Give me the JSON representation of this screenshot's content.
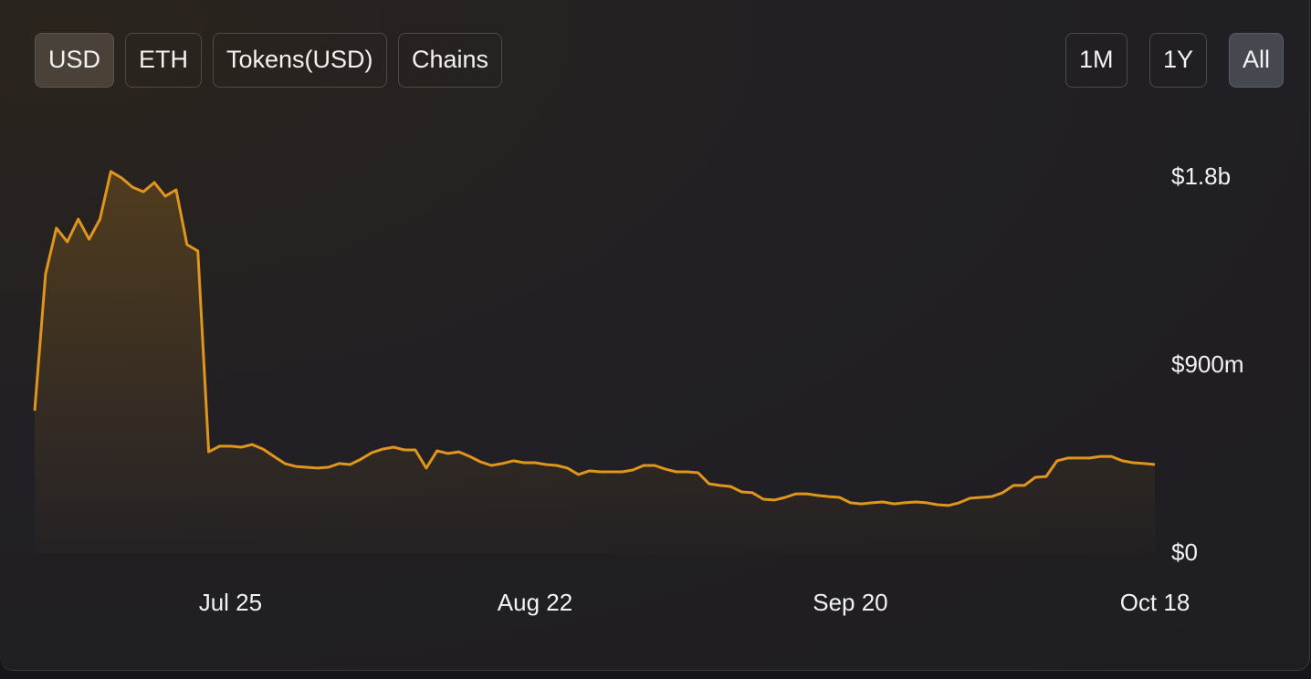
{
  "controls": {
    "denominations": [
      {
        "label": "USD",
        "active": true
      },
      {
        "label": "ETH",
        "active": false
      },
      {
        "label": "Tokens(USD)",
        "active": false
      },
      {
        "label": "Chains",
        "active": false
      }
    ],
    "ranges": [
      {
        "label": "1M",
        "active": false
      },
      {
        "label": "1Y",
        "active": false
      },
      {
        "label": "All",
        "active": true
      }
    ]
  },
  "chart_data": {
    "type": "area",
    "color": "#e0961c",
    "categories": [
      null,
      null,
      null,
      null,
      null,
      null,
      null,
      null,
      null,
      null,
      null,
      null,
      null,
      null,
      null,
      null,
      null,
      null,
      "Jul 25",
      null,
      null,
      null,
      null,
      null,
      null,
      null,
      null,
      null,
      null,
      null,
      null,
      null,
      null,
      null,
      null,
      null,
      null,
      null,
      null,
      null,
      null,
      null,
      null,
      null,
      null,
      null,
      "Aug 22",
      null,
      null,
      null,
      null,
      null,
      null,
      null,
      null,
      null,
      null,
      null,
      null,
      null,
      null,
      null,
      null,
      null,
      null,
      null,
      null,
      null,
      null,
      null,
      null,
      null,
      null,
      null,
      null,
      "Sep 20",
      null,
      null,
      null,
      null,
      null,
      null,
      null,
      null,
      null,
      null,
      null,
      null,
      null,
      null,
      null,
      null,
      null,
      null,
      null,
      null,
      null,
      null,
      null,
      null,
      null,
      null,
      null,
      "Oct 18"
    ],
    "values": [
      686000000,
      1341000000,
      1560000000,
      1494000000,
      1603000000,
      1507000000,
      1603000000,
      1831000000,
      1800000000,
      1756000000,
      1734000000,
      1778000000,
      1713000000,
      1743000000,
      1481000000,
      1450000000,
      489000000,
      516000000,
      516000000,
      511000000,
      524000000,
      502000000,
      467000000,
      433000000,
      419000000,
      415000000,
      411000000,
      415000000,
      433000000,
      428000000,
      454000000,
      485000000,
      502000000,
      511000000,
      498000000,
      498000000,
      411000000,
      494000000,
      481000000,
      489000000,
      467000000,
      441000000,
      424000000,
      433000000,
      446000000,
      437000000,
      437000000,
      428000000,
      424000000,
      411000000,
      380000000,
      398000000,
      393000000,
      393000000,
      393000000,
      402000000,
      424000000,
      424000000,
      406000000,
      393000000,
      393000000,
      389000000,
      336000000,
      328000000,
      323000000,
      297000000,
      293000000,
      262000000,
      258000000,
      271000000,
      288000000,
      288000000,
      280000000,
      275000000,
      271000000,
      245000000,
      240000000,
      245000000,
      249000000,
      240000000,
      245000000,
      249000000,
      245000000,
      236000000,
      232000000,
      245000000,
      267000000,
      271000000,
      275000000,
      293000000,
      328000000,
      328000000,
      367000000,
      371000000,
      446000000,
      459000000,
      459000000,
      459000000,
      467000000,
      467000000,
      446000000,
      437000000,
      433000000,
      428000000
    ],
    "ylim": [
      0,
      1800000000
    ],
    "yticks": [
      {
        "value": 0,
        "label": "$0"
      },
      {
        "value": 900000000,
        "label": "$900m"
      },
      {
        "value": 1800000000,
        "label": "$1.8b"
      }
    ],
    "grid": false
  }
}
